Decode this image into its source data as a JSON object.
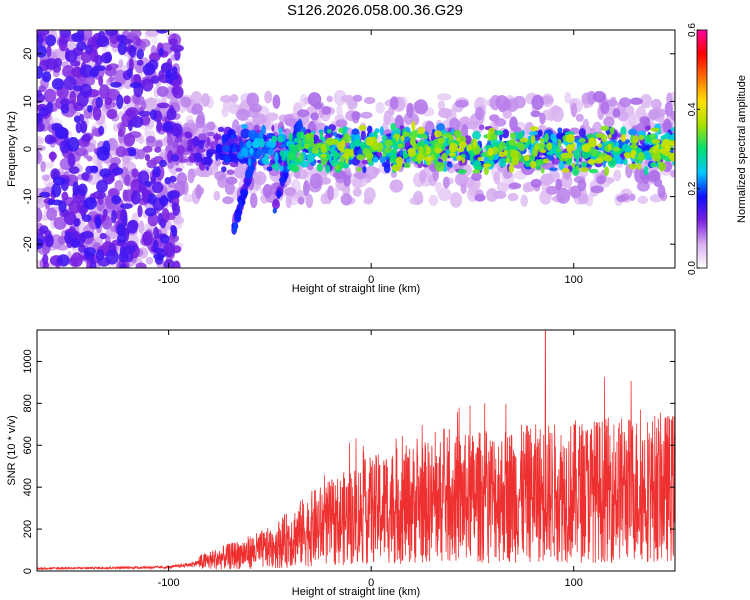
{
  "title": "S126.2026.058.00.36.G29",
  "chart_data": [
    {
      "type": "heatmap",
      "xlabel": "Height of straight line (km)",
      "ylabel": "Frequency (Hz)",
      "xlim": [
        -165,
        150
      ],
      "ylim": [
        -25,
        25
      ],
      "x_ticks": [
        -100,
        0,
        100
      ],
      "y_ticks": [
        -20,
        -10,
        0,
        10,
        20
      ],
      "colorbar": {
        "label": "Normalized spectral amplitude",
        "range": [
          0,
          0.6
        ],
        "ticks": [
          0.0,
          0.2,
          0.4,
          0.6
        ],
        "colors": [
          "#ffffff",
          "#d8b0f0",
          "#7a20e0",
          "#1010ff",
          "#00c8ff",
          "#00e070",
          "#a8e000",
          "#ffe000",
          "#ff7000",
          "#ff0000",
          "#ff00a0"
        ]
      },
      "features": [
        {
          "name": "noise-region",
          "x_range": [
            -165,
            -95
          ],
          "freq_range": [
            -25,
            25
          ],
          "level": 0.1
        },
        {
          "name": "signal-band",
          "x_range": [
            -100,
            150
          ],
          "freq_center": 0,
          "freq_halfwidth": 5,
          "level_max": 0.3
        },
        {
          "name": "descending-streak",
          "x_start": -35,
          "x_end": -48,
          "freq_start": 6,
          "freq_end": -13
        },
        {
          "name": "descending-streak",
          "x_start": -58,
          "x_end": -68,
          "freq_start": -2,
          "freq_end": -17
        }
      ]
    },
    {
      "type": "line",
      "xlabel": "Height of straight line (km)",
      "ylabel": "SNR (10 * v/v)",
      "xlim": [
        -165,
        150
      ],
      "ylim": [
        0,
        1150
      ],
      "x_ticks": [
        -100,
        0,
        100
      ],
      "y_ticks": [
        0,
        200,
        400,
        600,
        800,
        1000
      ],
      "color": "#ee3030",
      "series": [
        {
          "name": "snr",
          "profile_x": [
            -165,
            -100,
            -90,
            -70,
            -50,
            -30,
            -10,
            0,
            20,
            40,
            60,
            80,
            100,
            120,
            150
          ],
          "profile_mean": [
            12,
            18,
            30,
            70,
            110,
            200,
            260,
            290,
            320,
            340,
            360,
            370,
            380,
            390,
            400
          ],
          "peak_x": 86,
          "peak_value": 1150
        }
      ]
    }
  ]
}
